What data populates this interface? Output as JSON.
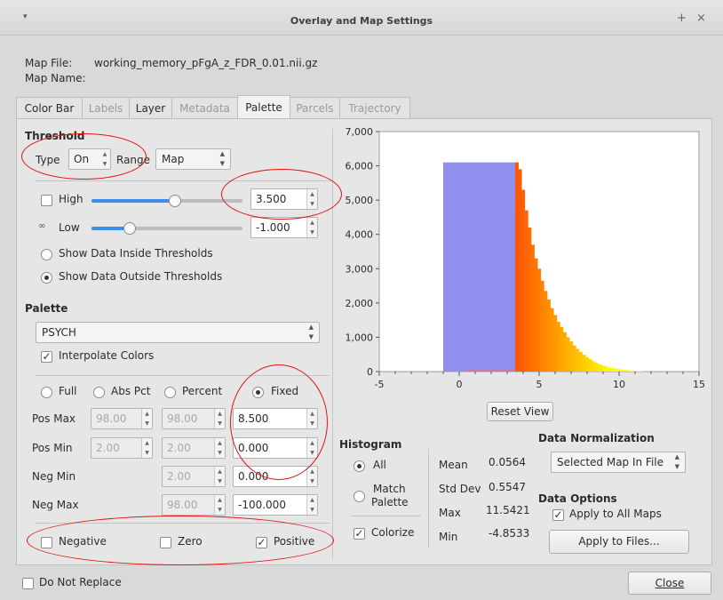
{
  "window": {
    "title": "Overlay and Map Settings",
    "menu_glyph": "▾",
    "pin_glyph": "+",
    "close_glyph": "×"
  },
  "map_info": {
    "file_label": "Map File:",
    "file_value": "working_memory_pFgA_z_FDR_0.01.nii.gz",
    "name_label": "Map Name:"
  },
  "tabs": [
    {
      "label": "Color Bar",
      "state": "enabled"
    },
    {
      "label": "Labels",
      "state": "disabled"
    },
    {
      "label": "Layer",
      "state": "enabled"
    },
    {
      "label": "Metadata",
      "state": "disabled"
    },
    {
      "label": "Palette",
      "state": "active"
    },
    {
      "label": "Parcels",
      "state": "disabled"
    },
    {
      "label": "Trajectory",
      "state": "disabled"
    }
  ],
  "threshold": {
    "heading": "Threshold",
    "type_label": "Type",
    "type_value": "On",
    "range_label": "Range",
    "range_value": "Map",
    "high_label": "High",
    "high_value": "3.500",
    "high_checked": false,
    "high_level": 0.55,
    "low_label": "Low",
    "low_value": "-1.000",
    "low_level": 0.25,
    "inside_label": "Show Data Inside Thresholds",
    "outside_label": "Show Data Outside Thresholds",
    "outside_selected": true
  },
  "palette": {
    "heading": "Palette",
    "name": "PSYCH",
    "interpolate_label": "Interpolate Colors",
    "interpolate_checked": true,
    "modes": [
      "Full",
      "Abs Pct",
      "Percent",
      "Fixed"
    ],
    "selected_mode": "Fixed",
    "pos_max_label": "Pos Max",
    "pos_min_label": "Pos Min",
    "neg_min_label": "Neg Min",
    "neg_max_label": "Neg Max",
    "pos_max_pct": "98.00",
    "pos_max_pct2": "98.00",
    "pos_max_fixed": "8.500",
    "pos_min_pct": "2.00",
    "pos_min_pct2": "2.00",
    "pos_min_fixed": "0.000",
    "neg_min_pct2": "2.00",
    "neg_min_fixed": "0.000",
    "neg_max_pct2": "98.00",
    "neg_max_fixed": "-100.000",
    "negative_label": "Negative",
    "zero_label": "Zero",
    "positive_label": "Positive",
    "positive_checked": true
  },
  "histogram": {
    "heading": "Histogram",
    "all_label": "All",
    "match_label_1": "Match",
    "match_label_2": "Palette",
    "colorize_label": "Colorize",
    "colorize_checked": true,
    "reset_label": "Reset View",
    "stats": [
      {
        "label": "Mean",
        "value": "0.0564"
      },
      {
        "label": "Std Dev",
        "value": "0.5547"
      },
      {
        "label": "Max",
        "value": "11.5421"
      },
      {
        "label": "Min",
        "value": "-4.8533"
      }
    ]
  },
  "normalization": {
    "heading": "Data Normalization",
    "value": "Selected Map In File",
    "options_heading": "Data Options",
    "apply_all_label": "Apply to All Maps",
    "apply_all_checked": true,
    "apply_files_label": "Apply to Files..."
  },
  "footer": {
    "do_not_replace_label": "Do Not Replace",
    "close_label": "Close"
  },
  "colors": {
    "threshold_fill": "#8f8fee",
    "hist_hot": "#ff5500",
    "hist_warm": "#ffb400",
    "hist_cool": "#ffff00",
    "annotation": "#e01212"
  },
  "chart_data": {
    "type": "bar",
    "title": "",
    "xlabel": "",
    "ylabel": "",
    "xlim": [
      -5,
      15
    ],
    "ylim": [
      0,
      7000
    ],
    "x_ticks": [
      "-5",
      "0",
      "5",
      "10",
      "15"
    ],
    "y_ticks": [
      "0",
      "1,000",
      "2,000",
      "3,000",
      "4,000",
      "5,000",
      "6,000",
      "7,000"
    ],
    "y_tick_values": [
      0,
      1000,
      2000,
      3000,
      4000,
      5000,
      6000,
      7000
    ],
    "x_tick_values": [
      -5,
      0,
      5,
      10,
      15
    ],
    "threshold_region": {
      "x0": -1.0,
      "x1": 3.5,
      "height": 6100
    },
    "bins": [
      {
        "x": 3.5,
        "y": 6100
      },
      {
        "x": 3.7,
        "y": 5900
      },
      {
        "x": 3.9,
        "y": 5300
      },
      {
        "x": 4.1,
        "y": 4700
      },
      {
        "x": 4.3,
        "y": 4200
      },
      {
        "x": 4.5,
        "y": 3700
      },
      {
        "x": 4.7,
        "y": 3300
      },
      {
        "x": 4.9,
        "y": 3000
      },
      {
        "x": 5.1,
        "y": 2650
      },
      {
        "x": 5.3,
        "y": 2350
      },
      {
        "x": 5.5,
        "y": 2100
      },
      {
        "x": 5.7,
        "y": 1850
      },
      {
        "x": 5.9,
        "y": 1650
      },
      {
        "x": 6.1,
        "y": 1450
      },
      {
        "x": 6.3,
        "y": 1300
      },
      {
        "x": 6.5,
        "y": 1150
      },
      {
        "x": 6.7,
        "y": 1000
      },
      {
        "x": 6.9,
        "y": 880
      },
      {
        "x": 7.1,
        "y": 760
      },
      {
        "x": 7.3,
        "y": 660
      },
      {
        "x": 7.5,
        "y": 570
      },
      {
        "x": 7.7,
        "y": 490
      },
      {
        "x": 7.9,
        "y": 420
      },
      {
        "x": 8.1,
        "y": 360
      },
      {
        "x": 8.3,
        "y": 300
      },
      {
        "x": 8.5,
        "y": 250
      },
      {
        "x": 8.7,
        "y": 210
      },
      {
        "x": 8.9,
        "y": 175
      },
      {
        "x": 9.1,
        "y": 145
      },
      {
        "x": 9.3,
        "y": 120
      },
      {
        "x": 9.5,
        "y": 100
      },
      {
        "x": 9.7,
        "y": 85
      },
      {
        "x": 9.9,
        "y": 70
      },
      {
        "x": 10.1,
        "y": 58
      },
      {
        "x": 10.3,
        "y": 48
      },
      {
        "x": 10.5,
        "y": 40
      },
      {
        "x": 10.7,
        "y": 32
      },
      {
        "x": 10.9,
        "y": 25
      },
      {
        "x": 11.1,
        "y": 18
      },
      {
        "x": 11.3,
        "y": 12
      }
    ],
    "bin_width": 0.2,
    "neg_tail": {
      "x0": 0.5,
      "x1": 3.5,
      "height": 40
    }
  }
}
